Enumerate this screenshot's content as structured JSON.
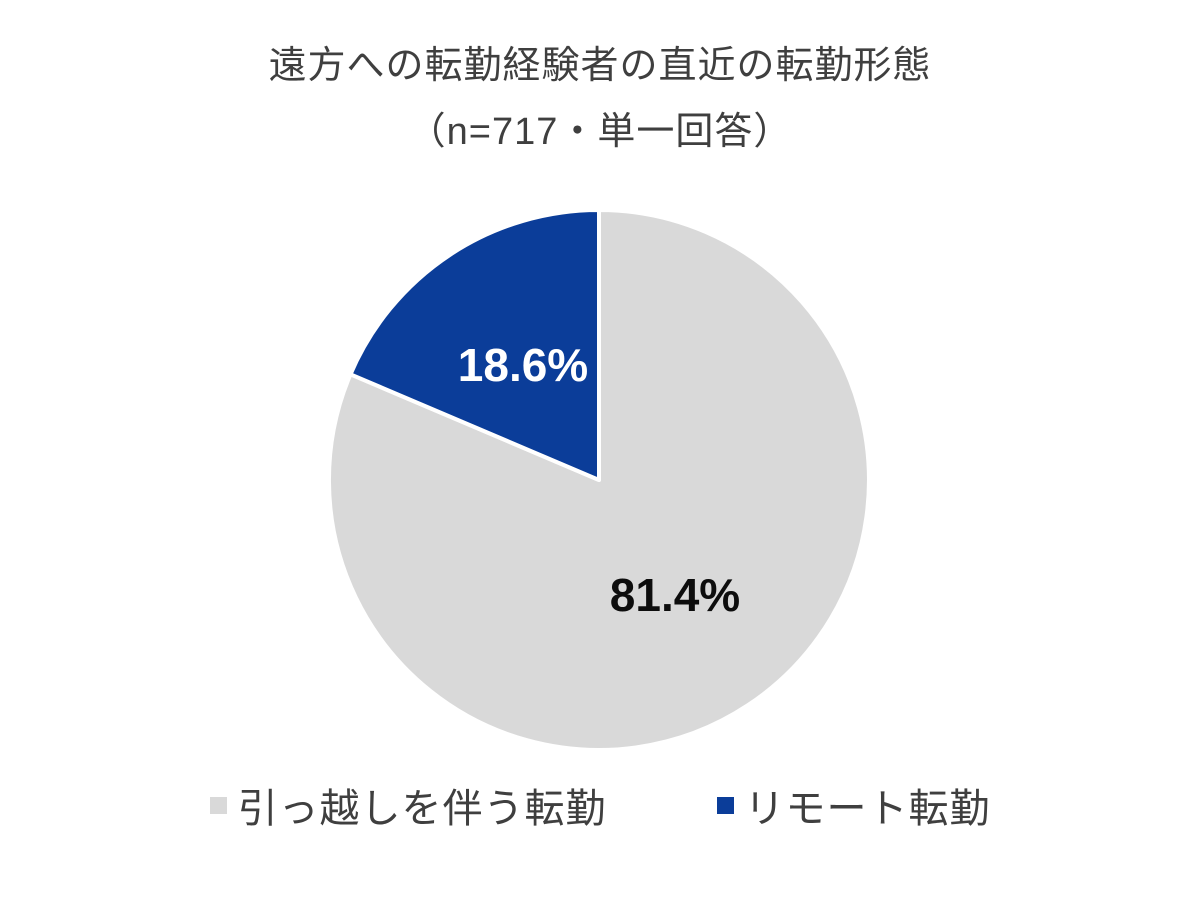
{
  "header": {
    "title": "遠方への転勤経験者の直近の転勤形態",
    "subtitle": "（n=717・単一回答）"
  },
  "chart_data": {
    "type": "pie",
    "title": "遠方への転勤経験者の直近の転勤形態",
    "subtitle": "（n=717・単一回答）",
    "n": 717,
    "answer_type": "単一回答",
    "start_angle_deg": 0,
    "direction": "clockwise",
    "legend_position": "bottom",
    "colors": {
      "background": "#ffffff",
      "title_text": "#3f3f3f",
      "legend_text": "#3f3f3f",
      "slice_border": "#ffffff"
    },
    "slices": [
      {
        "label": "引っ越しを伴う転勤",
        "value": 81.4,
        "display": "81.4%",
        "color": "#d9d9d9",
        "label_color": "#0d0d0d"
      },
      {
        "label": "リモート転勤",
        "value": 18.6,
        "display": "18.6%",
        "color": "#0b3d99",
        "label_color": "#ffffff"
      }
    ]
  }
}
